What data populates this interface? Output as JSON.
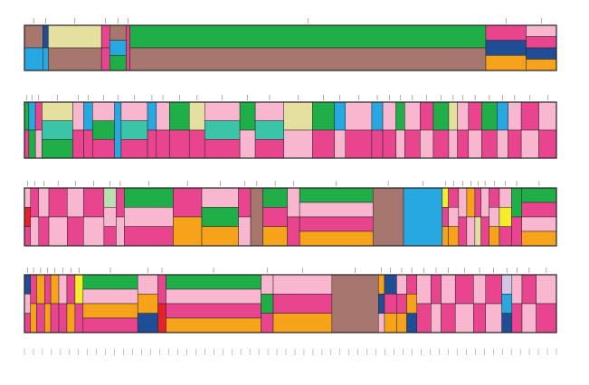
{
  "chart_data": {
    "type": "heatmap",
    "description_of_encoding": "",
    "palette": {
      "green": "#1fae48",
      "pink": "#f8b7cf",
      "magenta": "#e9458f",
      "light_pink": "#f6c6d6",
      "orange": "#f7a21b",
      "brown": "#a7766e",
      "cyan": "#27a8e0",
      "navy": "#1f4e96",
      "khaki": "#e5dfa0",
      "teal": "#3bc4a8",
      "red": "#e8202a",
      "yellow": "#f5ec2c",
      "lavender": "#cfc7e6",
      "pale_green": "#b9e0b0",
      "outline": "#222222"
    },
    "rows": [
      {
        "name": "",
        "blocks": [
          {
            "w": 20,
            "stack": [
              "brown",
              "cyan"
            ]
          },
          {
            "w": 6,
            "stack": [
              "navy",
              "cyan"
            ]
          },
          {
            "w": 58,
            "stack": [
              "khaki",
              "brown"
            ]
          },
          {
            "w": 9,
            "stack": [
              "magenta",
              "magenta"
            ]
          },
          {
            "w": 18,
            "stack": [
              "brown",
              "cyan",
              "green"
            ]
          },
          {
            "w": 4,
            "stack": [
              "magenta"
            ]
          },
          {
            "w": 388,
            "stack": [
              "green",
              "brown"
            ]
          },
          {
            "w": 44,
            "stack": [
              "magenta",
              "navy",
              "orange"
            ]
          },
          {
            "w": 33,
            "stack": [
              "pink",
              "magenta",
              "navy",
              "orange"
            ]
          }
        ],
        "tick_labels": []
      },
      {
        "name": "",
        "blocks": [
          {
            "w": 4,
            "stack": [
              "green",
              "magenta"
            ]
          },
          {
            "w": 6,
            "stack": [
              "cyan",
              "green"
            ]
          },
          {
            "w": 6,
            "stack": [
              "magenta",
              "pink"
            ]
          },
          {
            "w": 28,
            "stack": [
              "khaki",
              "teal",
              "green"
            ]
          },
          {
            "w": 10,
            "stack": [
              "pink",
              "magenta"
            ]
          },
          {
            "w": 8,
            "stack": [
              "cyan",
              "magenta"
            ]
          },
          {
            "w": 20,
            "stack": [
              "pink",
              "green",
              "magenta"
            ]
          },
          {
            "w": 6,
            "stack": [
              "cyan"
            ]
          },
          {
            "w": 24,
            "stack": [
              "pink",
              "teal",
              "magenta"
            ]
          },
          {
            "w": 8,
            "stack": [
              "cyan",
              "magenta"
            ]
          },
          {
            "w": 12,
            "stack": [
              "pink",
              "magenta"
            ]
          },
          {
            "w": 18,
            "stack": [
              "green",
              "magenta"
            ]
          },
          {
            "w": 14,
            "stack": [
              "khaki",
              "magenta"
            ]
          },
          {
            "w": 32,
            "stack": [
              "pink",
              "teal",
              "magenta"
            ]
          },
          {
            "w": 14,
            "stack": [
              "green",
              "pink"
            ]
          },
          {
            "w": 26,
            "stack": [
              "pink",
              "teal",
              "magenta"
            ]
          },
          {
            "w": 26,
            "stack": [
              "khaki",
              "pink"
            ]
          },
          {
            "w": 20,
            "stack": [
              "green",
              "magenta"
            ]
          },
          {
            "w": 10,
            "stack": [
              "cyan",
              "pink"
            ]
          },
          {
            "w": 24,
            "stack": [
              "pink",
              "magenta"
            ]
          },
          {
            "w": 10,
            "stack": [
              "cyan",
              "magenta"
            ]
          },
          {
            "w": 12,
            "stack": [
              "pink",
              "magenta"
            ]
          },
          {
            "w": 8,
            "stack": [
              "green",
              "pink"
            ]
          },
          {
            "w": 14,
            "stack": [
              "pink",
              "magenta"
            ]
          },
          {
            "w": 12,
            "stack": [
              "magenta",
              "pink"
            ]
          },
          {
            "w": 14,
            "stack": [
              "green",
              "magenta"
            ]
          },
          {
            "w": 8,
            "stack": [
              "khaki",
              "pink"
            ]
          },
          {
            "w": 10,
            "stack": [
              "pink",
              "magenta"
            ]
          },
          {
            "w": 12,
            "stack": [
              "magenta",
              "pink"
            ]
          },
          {
            "w": 14,
            "stack": [
              "green",
              "magenta"
            ]
          },
          {
            "w": 10,
            "stack": [
              "cyan",
              "pink"
            ]
          },
          {
            "w": 12,
            "stack": [
              "pink",
              "magenta"
            ]
          },
          {
            "w": 16,
            "stack": [
              "magenta",
              "pink"
            ]
          },
          {
            "w": 16,
            "stack": [
              "pink",
              "magenta"
            ]
          }
        ],
        "tick_labels": []
      },
      {
        "name": "",
        "blocks": [
          {
            "w": 6,
            "stack": [
              "pink",
              "red",
              "magenta"
            ]
          },
          {
            "w": 8,
            "stack": [
              "magenta",
              "pink"
            ]
          },
          {
            "w": 10,
            "stack": [
              "pink",
              "magenta"
            ]
          },
          {
            "w": 18,
            "stack": [
              "magenta",
              "pink"
            ]
          },
          {
            "w": 16,
            "stack": [
              "pink",
              "magenta"
            ]
          },
          {
            "w": 20,
            "stack": [
              "magenta",
              "pink"
            ]
          },
          {
            "w": 12,
            "stack": [
              "pale_green",
              "pink",
              "magenta"
            ]
          },
          {
            "w": 8,
            "stack": [
              "magenta",
              "pink"
            ]
          },
          {
            "w": 48,
            "stack": [
              "green",
              "pink",
              "magenta"
            ]
          },
          {
            "w": 28,
            "stack": [
              "magenta",
              "orange"
            ]
          },
          {
            "w": 36,
            "stack": [
              "pink",
              "green",
              "orange"
            ]
          },
          {
            "w": 12,
            "stack": [
              "magenta",
              "pink"
            ]
          },
          {
            "w": 12,
            "stack": [
              "brown"
            ]
          },
          {
            "w": 24,
            "stack": [
              "green",
              "magenta",
              "orange"
            ]
          },
          {
            "w": 12,
            "stack": [
              "pink",
              "magenta"
            ]
          },
          {
            "w": 72,
            "stack": [
              "green",
              "pink",
              "magenta",
              "orange"
            ]
          },
          {
            "w": 30,
            "stack": [
              "brown"
            ]
          },
          {
            "w": 38,
            "stack": [
              "cyan"
            ]
          },
          {
            "w": 6,
            "stack": [
              "yellow",
              "magenta",
              "orange"
            ]
          },
          {
            "w": 10,
            "stack": [
              "magenta",
              "pink",
              "orange"
            ]
          },
          {
            "w": 8,
            "stack": [
              "pink",
              "magenta"
            ]
          },
          {
            "w": 8,
            "stack": [
              "orange",
              "pink"
            ]
          },
          {
            "w": 6,
            "stack": [
              "magenta",
              "khaki"
            ]
          },
          {
            "w": 8,
            "stack": [
              "pink",
              "magenta"
            ]
          },
          {
            "w": 10,
            "stack": [
              "magenta",
              "pink",
              "orange"
            ]
          },
          {
            "w": 12,
            "stack": [
              "pink",
              "yellow",
              "magenta"
            ]
          },
          {
            "w": 10,
            "stack": [
              "green",
              "magenta"
            ]
          },
          {
            "w": 34,
            "stack": [
              "green",
              "magenta",
              "pink",
              "orange"
            ]
          }
        ],
        "tick_labels": []
      },
      {
        "name": "",
        "blocks": [
          {
            "w": 6,
            "stack": [
              "navy",
              "pink",
              "magenta"
            ]
          },
          {
            "w": 6,
            "stack": [
              "magenta",
              "orange"
            ]
          },
          {
            "w": 8,
            "stack": [
              "orange",
              "magenta"
            ]
          },
          {
            "w": 6,
            "stack": [
              "magenta",
              "orange"
            ]
          },
          {
            "w": 8,
            "stack": [
              "orange",
              "magenta"
            ]
          },
          {
            "w": 8,
            "stack": [
              "pink",
              "magenta"
            ]
          },
          {
            "w": 8,
            "stack": [
              "magenta",
              "orange"
            ]
          },
          {
            "w": 8,
            "stack": [
              "yellow",
              "magenta"
            ]
          },
          {
            "w": 54,
            "stack": [
              "green",
              "pink",
              "orange",
              "magenta"
            ]
          },
          {
            "w": 20,
            "stack": [
              "pink",
              "orange",
              "navy"
            ]
          },
          {
            "w": 8,
            "stack": [
              "magenta",
              "red"
            ]
          },
          {
            "w": 94,
            "stack": [
              "green",
              "pink",
              "magenta",
              "orange"
            ]
          },
          {
            "w": 12,
            "stack": [
              "pink",
              "green",
              "magenta"
            ]
          },
          {
            "w": 58,
            "stack": [
              "pink",
              "magenta",
              "orange"
            ]
          },
          {
            "w": 46,
            "stack": [
              "brown"
            ]
          },
          {
            "w": 6,
            "stack": [
              "orange",
              "navy",
              "pink"
            ]
          },
          {
            "w": 12,
            "stack": [
              "navy",
              "magenta",
              "orange"
            ]
          },
          {
            "w": 10,
            "stack": [
              "pink",
              "magenta",
              "orange"
            ]
          },
          {
            "w": 10,
            "stack": [
              "magenta",
              "orange",
              "navy"
            ]
          },
          {
            "w": 14,
            "stack": [
              "pink",
              "magenta"
            ]
          },
          {
            "w": 10,
            "stack": [
              "magenta",
              "pink"
            ]
          },
          {
            "w": 14,
            "stack": [
              "pink",
              "magenta"
            ]
          },
          {
            "w": 18,
            "stack": [
              "magenta",
              "pink"
            ]
          },
          {
            "w": 12,
            "stack": [
              "pink",
              "magenta"
            ]
          },
          {
            "w": 16,
            "stack": [
              "magenta",
              "pink"
            ]
          },
          {
            "w": 10,
            "stack": [
              "lavender",
              "cyan",
              "navy"
            ]
          },
          {
            "w": 10,
            "stack": [
              "pink",
              "magenta"
            ]
          },
          {
            "w": 14,
            "stack": [
              "magenta",
              "pink"
            ]
          },
          {
            "w": 20,
            "stack": [
              "pink",
              "magenta"
            ]
          }
        ],
        "tick_labels": []
      }
    ],
    "bottom_axis_labels": []
  }
}
